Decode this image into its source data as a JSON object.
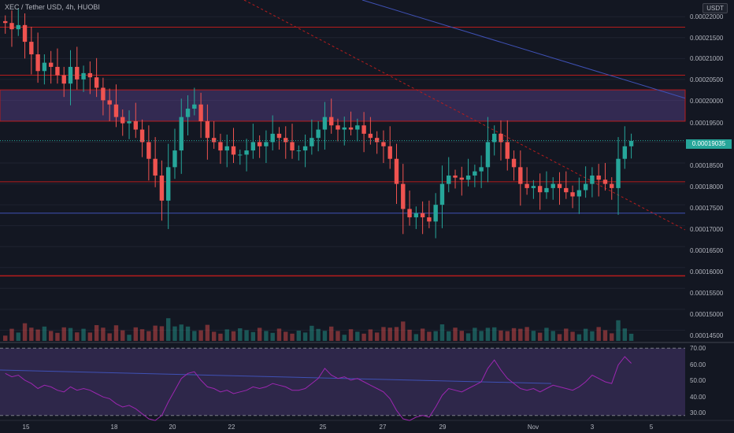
{
  "header": {
    "ticker_label": "XEC / Tether USD, 4h, HUOBI",
    "currency_label": "USDT"
  },
  "price_axis": {
    "ticks": [
      "0.00022000",
      "0.00021500",
      "0.00021000",
      "0.00020500",
      "0.00020000",
      "0.00019500",
      "0.00018500",
      "0.00018000",
      "0.00017500",
      "0.00017000",
      "0.00016500",
      "0.00016000",
      "0.00015500",
      "0.00015000",
      "0.00014500"
    ],
    "current_price": "0.00019035"
  },
  "rsi_axis": {
    "ticks": [
      "70.00",
      "60.00",
      "50.00",
      "40.00",
      "30.00"
    ]
  },
  "time_axis": {
    "labels": [
      "15",
      "18",
      "20",
      "22",
      "25",
      "27",
      "29",
      "Nov",
      "3",
      "5"
    ]
  },
  "colors": {
    "background": "#131722",
    "up": "#26a69a",
    "down": "#ef5350",
    "rsi_band": "#7e57c2",
    "rsi_line": "#9c27b0",
    "trendline_blue": "#3f51b5",
    "level_red": "#b71c1c",
    "price_tag": "#26a69a"
  },
  "chart_data": {
    "type": "candlestick",
    "symbol": "XEC / Tether USD",
    "interval": "4h",
    "exchange": "HUOBI",
    "current_price": 0.00019035,
    "price_range": [
      0.000143,
      0.000224
    ],
    "rsi_range": [
      28,
      72
    ],
    "x_labels": [
      "15",
      "18",
      "20",
      "22",
      "25",
      "27",
      "29",
      "Nov",
      "3",
      "5"
    ],
    "zones": [
      {
        "from": 0.000195,
        "to": 0.0002025
      }
    ],
    "horizontal_levels": [
      0.0002175,
      0.000206,
      0.0001805,
      0.000173,
      0.000158
    ],
    "series": [
      {
        "name": "XEC/USDT",
        "values": [
          0.0002185,
          0.000217,
          0.000218,
          0.000214,
          0.000211,
          0.000207,
          0.000209,
          0.000208,
          0.000206,
          0.000204,
          0.000208,
          0.000205,
          0.0002065,
          0.0002055,
          0.000203,
          0.0002,
          0.000199,
          0.000196,
          0.0001945,
          0.000195,
          0.000193,
          0.00019,
          0.000186,
          0.000182,
          0.000176,
          0.000184,
          0.000188,
          0.000196,
          0.000198,
          0.000199,
          0.000195,
          0.000191,
          0.00019,
          0.000188,
          0.000189,
          0.000187,
          0.000187,
          0.000188,
          0.00019,
          0.000189,
          0.00019,
          0.000192,
          0.000191,
          0.00019,
          0.000188,
          0.000188,
          0.000189,
          0.000191,
          0.000193,
          0.000196,
          0.000194,
          0.000193,
          0.0001935,
          0.000193,
          0.000194,
          0.000192,
          0.000191,
          0.00019,
          0.000189,
          0.000186,
          0.00018,
          0.000174,
          0.000172,
          0.000173,
          0.000172,
          0.000171,
          0.000175,
          0.00018,
          0.000182,
          0.0001815,
          0.000181,
          0.000182,
          0.000183,
          0.000184,
          0.00019,
          0.000192,
          0.00019,
          0.000186,
          0.000184,
          0.00018,
          0.000179,
          0.0001795,
          0.000178,
          0.000179,
          0.00018,
          0.000179,
          0.000178,
          0.000177,
          0.0001785,
          0.00018,
          0.000182,
          0.000181,
          0.00018,
          0.000179,
          0.000186,
          0.000189,
          0.0001903
        ]
      }
    ],
    "rsi": [
      55,
      53,
      54,
      51,
      49,
      46,
      48,
      47,
      45,
      44,
      47,
      45,
      46,
      45,
      43,
      41,
      40,
      37,
      35,
      36,
      34,
      31,
      28,
      27,
      30,
      38,
      45,
      52,
      55,
      56,
      51,
      47,
      46,
      44,
      45,
      43,
      44,
      45,
      47,
      46,
      47,
      49,
      48,
      47,
      45,
      45,
      46,
      49,
      52,
      58,
      54,
      52,
      53,
      51,
      52,
      50,
      48,
      46,
      44,
      40,
      33,
      28,
      27,
      29,
      30,
      29,
      35,
      42,
      46,
      45,
      44,
      46,
      48,
      50,
      58,
      63,
      57,
      52,
      49,
      46,
      45,
      46,
      44,
      46,
      48,
      47,
      46,
      45,
      47,
      50,
      54,
      52,
      50,
      49,
      60,
      65,
      61
    ],
    "rsi_levels": [
      70,
      30
    ]
  }
}
